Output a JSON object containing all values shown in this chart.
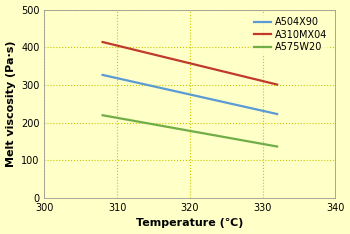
{
  "xlabel": "Temperature (℃)",
  "ylabel": "Melt viscosity (Pa·s)",
  "background_color": "#ffffc8",
  "grid_color": "#c8c800",
  "xlim": [
    300,
    340
  ],
  "ylim": [
    0,
    500
  ],
  "xticks": [
    300,
    310,
    320,
    330,
    340
  ],
  "yticks": [
    0,
    100,
    200,
    300,
    400,
    500
  ],
  "series": [
    {
      "label": "A504X90",
      "color": "#5b9bd5",
      "x": [
        308,
        310,
        315,
        320,
        325,
        330,
        332
      ],
      "y": [
        326,
        322,
        300,
        265,
        250,
        232,
        228
      ]
    },
    {
      "label": "A310MX04",
      "color": "#c0392b",
      "x": [
        308,
        310,
        315,
        320,
        325,
        330,
        332
      ],
      "y": [
        410,
        402,
        383,
        365,
        338,
        306,
        298
      ]
    },
    {
      "label": "A575W20",
      "color": "#70ad47",
      "x": [
        308,
        310,
        315,
        320,
        325,
        330,
        332
      ],
      "y": [
        222,
        216,
        196,
        168,
        158,
        145,
        142
      ]
    }
  ],
  "legend_loc": "upper right",
  "legend_fontsize": 7,
  "axis_label_fontsize": 8,
  "tick_fontsize": 7,
  "linewidth": 1.6
}
